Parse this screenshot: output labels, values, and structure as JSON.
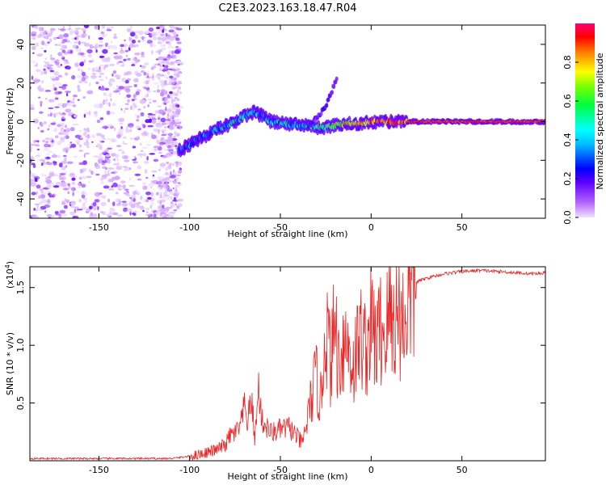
{
  "chart_data": [
    {
      "type": "heatmap",
      "title": "C2E3.2023.163.18.47.R04",
      "xlabel": "Height of straight line (km)",
      "ylabel": "Frequency (Hz)",
      "xlim": [
        -188,
        96
      ],
      "ylim": [
        -50,
        50
      ],
      "x_ticks": [
        -150,
        -100,
        -50,
        0,
        50
      ],
      "y_ticks": [
        40,
        20,
        0,
        -20,
        -40
      ],
      "colorbar": {
        "label": "Normalized spectral amplitude",
        "ticks": [
          "0.0",
          "0.2",
          "0.4",
          "0.6",
          "0.8"
        ],
        "range": [
          0,
          1
        ],
        "colors": [
          "#f0e0ff",
          "#8a00ff",
          "#0000ff",
          "#00ffff",
          "#00ff00",
          "#ffff00",
          "#ff8000",
          "#ff0000",
          "#ff0060"
        ]
      },
      "trace": {
        "x": [
          -106,
          -100,
          -95,
          -90,
          -85,
          -80,
          -75,
          -70,
          -65,
          -60,
          -55,
          -50,
          -45,
          -40,
          -35,
          -30,
          -25,
          -20,
          -15,
          -10,
          -5,
          0,
          5,
          10,
          15,
          20,
          40,
          60,
          80,
          96
        ],
        "y": [
          -15,
          -12,
          -9,
          -7,
          -4,
          -2,
          0,
          3,
          5,
          3,
          0,
          -1,
          -1,
          -2,
          -2,
          -3,
          -3,
          -2,
          -1,
          -1,
          -1,
          0,
          0,
          0,
          0,
          0,
          0,
          0,
          0,
          0
        ],
        "amplitude": [
          0.25,
          0.3,
          0.32,
          0.35,
          0.38,
          0.42,
          0.45,
          0.4,
          0.35,
          0.35,
          0.4,
          0.42,
          0.45,
          0.4,
          0.42,
          0.5,
          0.55,
          0.6,
          0.75,
          0.8,
          0.82,
          0.85,
          0.88,
          0.88,
          0.9,
          0.9,
          0.9,
          0.9,
          0.9,
          0.9
        ]
      },
      "branch": {
        "x": [
          -35,
          -30,
          -25,
          -22,
          -19
        ],
        "y": [
          -3,
          2,
          8,
          15,
          22
        ]
      },
      "noise_region": {
        "x_start": -188,
        "x_end": -105,
        "y_range": [
          -50,
          50
        ]
      }
    },
    {
      "type": "line",
      "xlabel": "Height of straight line (km)",
      "ylabel": "SNR (10 * v/v)",
      "exponent_label": "(x10",
      "exponent_power": "4",
      "exponent_close": ")",
      "xlim": [
        -188,
        96
      ],
      "ylim": [
        0,
        1.68
      ],
      "x_ticks": [
        -150,
        -100,
        -50,
        0,
        50
      ],
      "y_ticks": [
        0.5,
        1.0,
        1.5
      ],
      "y_tick_labels": [
        "0.5",
        "1.0",
        "1.5"
      ],
      "series": [
        {
          "name": "SNR",
          "color": "#ee2222",
          "x": [
            -188,
            -150,
            -110,
            -105,
            -100,
            -95,
            -90,
            -85,
            -80,
            -78,
            -75,
            -72,
            -70,
            -68,
            -66,
            -64,
            -62,
            -60,
            -55,
            -50,
            -45,
            -40,
            -38,
            -35,
            -32,
            -30,
            -28,
            -25,
            -22,
            -20,
            -18,
            -15,
            -12,
            -10,
            -8,
            -5,
            -3,
            0,
            3,
            5,
            8,
            10,
            12,
            15,
            18,
            20,
            22,
            25,
            30,
            35,
            40,
            45,
            50,
            60,
            70,
            80,
            90,
            96
          ],
          "y": [
            0.02,
            0.02,
            0.02,
            0.03,
            0.04,
            0.06,
            0.08,
            0.1,
            0.15,
            0.22,
            0.25,
            0.3,
            0.48,
            0.35,
            0.55,
            0.2,
            0.65,
            0.35,
            0.25,
            0.28,
            0.3,
            0.2,
            0.15,
            0.38,
            0.65,
            0.75,
            0.5,
            1.25,
            0.85,
            1.3,
            0.9,
            1.1,
            1.0,
            0.85,
            1.0,
            1.15,
            1.0,
            1.25,
            1.05,
            1.2,
            1.15,
            1.35,
            1.25,
            1.35,
            1.25,
            1.45,
            1.5,
            1.55,
            1.58,
            1.6,
            1.62,
            1.63,
            1.64,
            1.65,
            1.64,
            1.63,
            1.62,
            1.63
          ]
        }
      ]
    }
  ]
}
